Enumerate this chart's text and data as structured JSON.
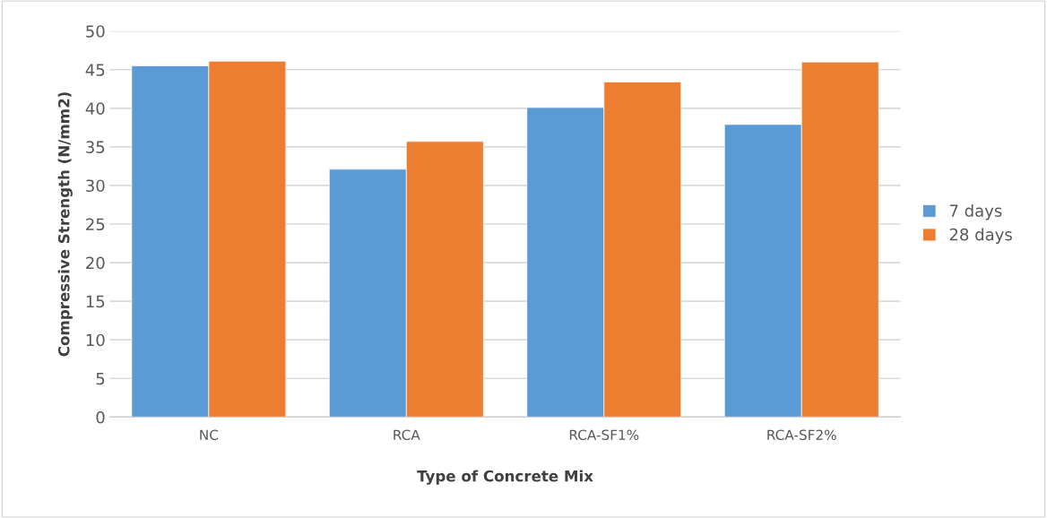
{
  "chart_data": {
    "type": "bar",
    "xlabel": "Type of Concrete Mix",
    "ylabel": "Compressive Strength (N/mm2)",
    "categories": [
      "NC",
      "RCA",
      "RCA-SF1%",
      "RCA-SF2%"
    ],
    "series": [
      {
        "name": "7 days",
        "color": "#5b9bd5",
        "values": [
          45.5,
          32.1,
          40.1,
          37.9
        ]
      },
      {
        "name": "28 days",
        "color": "#ed7d31",
        "values": [
          46.1,
          35.7,
          43.4,
          46.0
        ]
      }
    ],
    "ylim": [
      0,
      50
    ],
    "yticks": [
      0,
      5,
      10,
      15,
      20,
      25,
      30,
      35,
      40,
      45,
      50
    ],
    "grid": "y",
    "legend": "right"
  }
}
